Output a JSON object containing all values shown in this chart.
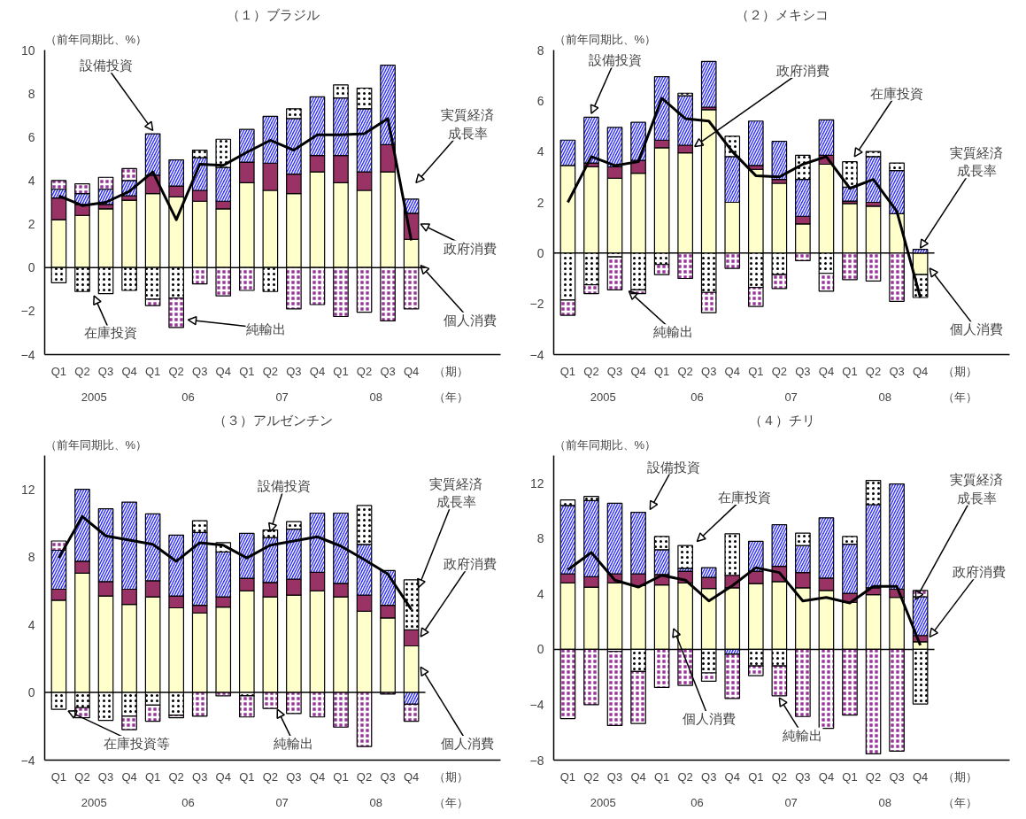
{
  "chart_data": [
    {
      "type": "bar",
      "stacked": true,
      "title": "（１）ブラジル",
      "ylabel": "（前年同期比、%）",
      "categories": [
        "Q1",
        "Q2",
        "Q3",
        "Q4",
        "Q1",
        "Q2",
        "Q3",
        "Q4",
        "Q1",
        "Q2",
        "Q3",
        "Q4",
        "Q1",
        "Q2",
        "Q3",
        "Q4"
      ],
      "annotations": [
        "2005",
        "06",
        "07",
        "08",
        "（期）",
        "（年）"
      ],
      "ylim": [
        -4,
        10
      ],
      "yticks": [
        -4,
        -2,
        0,
        2,
        4,
        6,
        8,
        10
      ],
      "series": [
        {
          "name": "個人消費",
          "color": "#ffffcc",
          "values": [
            2.2,
            2.4,
            2.7,
            3.1,
            3.4,
            3.25,
            3.05,
            2.7,
            3.9,
            3.55,
            3.4,
            4.4,
            3.9,
            3.55,
            4.4,
            1.3
          ]
        },
        {
          "name": "政府消費",
          "color": "#993366",
          "values": [
            1.0,
            0.5,
            0.2,
            0.2,
            0.85,
            0.5,
            0.5,
            0.35,
            0.95,
            1.25,
            0.9,
            0.75,
            1.25,
            0.85,
            1.25,
            1.2
          ]
        },
        {
          "name": "設備投資",
          "color": "#3333ff",
          "values": [
            0.4,
            0.5,
            0.7,
            0.7,
            1.9,
            1.2,
            1.5,
            1.55,
            1.5,
            2.15,
            2.55,
            2.7,
            2.65,
            2.9,
            3.65,
            0.65
          ]
        },
        {
          "name": "在庫投資",
          "color": "#ffffff",
          "values": [
            -0.7,
            -1.1,
            -1.2,
            -1.05,
            -1.45,
            -1.4,
            0.35,
            1.3,
            null,
            -1.1,
            0.45,
            null,
            0.6,
            0.95,
            null,
            null
          ]
        },
        {
          "name": "純輸出",
          "color": "#993399",
          "values": [
            0.4,
            0.45,
            0.55,
            0.55,
            -0.3,
            -1.35,
            -0.75,
            -1.3,
            -1.05,
            null,
            -1.9,
            -1.7,
            -2.25,
            -2.05,
            -2.45,
            -1.9
          ]
        },
        {
          "name": "実質経済成長率",
          "type": "line",
          "color": "#000000",
          "values": [
            3.3,
            2.85,
            3.0,
            3.5,
            4.4,
            2.2,
            4.75,
            4.7,
            5.3,
            5.85,
            5.4,
            6.1,
            6.1,
            6.15,
            6.85,
            1.25
          ]
        }
      ]
    },
    {
      "type": "bar",
      "stacked": true,
      "title": "（２）メキシコ",
      "ylabel": "（前年同期比、%）",
      "categories": [
        "Q1",
        "Q2",
        "Q3",
        "Q4",
        "Q1",
        "Q2",
        "Q3",
        "Q4",
        "Q1",
        "Q2",
        "Q3",
        "Q4",
        "Q1",
        "Q2",
        "Q3",
        "Q4"
      ],
      "annotations": [
        "2005",
        "06",
        "07",
        "08",
        "（期）",
        "（年）"
      ],
      "ylim": [
        -4,
        8
      ],
      "yticks": [
        -4,
        -2,
        0,
        2,
        4,
        6,
        8
      ],
      "series": [
        {
          "name": "個人消費",
          "color": "#ffffcc",
          "values": [
            3.45,
            3.4,
            2.95,
            3.15,
            4.15,
            3.95,
            5.65,
            2.0,
            3.3,
            2.75,
            1.15,
            3.5,
            1.95,
            1.85,
            1.55,
            -0.85
          ]
        },
        {
          "name": "政府消費",
          "color": "#993366",
          "values": [
            null,
            0.15,
            0.45,
            0.5,
            0.3,
            0.3,
            0.1,
            null,
            0.15,
            0.15,
            0.3,
            0.35,
            0.1,
            0.15,
            null,
            null
          ]
        },
        {
          "name": "設備投資",
          "color": "#3333ff",
          "values": [
            1.0,
            1.8,
            1.55,
            1.5,
            2.5,
            1.95,
            1.8,
            1.8,
            1.75,
            1.5,
            1.45,
            1.4,
            0.55,
            1.8,
            1.7,
            0.15
          ]
        },
        {
          "name": "在庫投資",
          "color": "#ffffff",
          "values": [
            -1.85,
            -1.25,
            -0.15,
            -1.45,
            -0.45,
            0.1,
            -1.55,
            0.8,
            -1.35,
            -0.85,
            0.95,
            -0.8,
            1.0,
            0.2,
            0.3,
            -0.9
          ]
        },
        {
          "name": "純輸出",
          "color": "#993399",
          "values": [
            -0.6,
            -0.35,
            -1.3,
            -0.15,
            -0.4,
            -1.0,
            -0.8,
            -0.6,
            -0.75,
            -0.55,
            -0.3,
            -0.7,
            -1.05,
            -1.1,
            -1.9,
            null
          ]
        },
        {
          "name": "実質経済成長率",
          "type": "line",
          "color": "#000000",
          "values": [
            2.0,
            3.8,
            3.45,
            3.6,
            6.1,
            5.3,
            5.2,
            4.0,
            3.05,
            3.0,
            3.5,
            3.8,
            2.55,
            2.9,
            1.65,
            -1.75
          ]
        }
      ]
    },
    {
      "type": "bar",
      "stacked": true,
      "title": "（３）アルゼンチン",
      "ylabel": "（前年同期比、%）",
      "categories": [
        "Q1",
        "Q2",
        "Q3",
        "Q4",
        "Q1",
        "Q2",
        "Q3",
        "Q4",
        "Q1",
        "Q2",
        "Q3",
        "Q4",
        "Q1",
        "Q2",
        "Q3",
        "Q4"
      ],
      "annotations": [
        "2005",
        "06",
        "07",
        "08",
        "（期）",
        "（年）"
      ],
      "ylim": [
        -4,
        14
      ],
      "yticks": [
        -4,
        0,
        4,
        8,
        12
      ],
      "series": [
        {
          "name": "個人消費",
          "color": "#ffffcc",
          "values": [
            5.45,
            7.05,
            5.7,
            5.2,
            5.65,
            5.0,
            4.7,
            5.05,
            6.0,
            5.65,
            5.75,
            6.0,
            5.65,
            4.8,
            4.4,
            2.75
          ]
        },
        {
          "name": "政府消費",
          "color": "#993366",
          "values": [
            0.65,
            0.7,
            0.85,
            0.9,
            0.95,
            0.7,
            0.45,
            0.6,
            0.75,
            0.85,
            0.95,
            1.1,
            0.8,
            0.95,
            0.75,
            0.95
          ]
        },
        {
          "name": "設備投資",
          "color": "#3333ff",
          "values": [
            2.3,
            4.25,
            4.3,
            5.15,
            3.95,
            3.6,
            4.3,
            2.65,
            2.65,
            2.65,
            2.95,
            3.5,
            4.15,
            3.0,
            2.05,
            -0.7
          ]
        },
        {
          "name": "在庫投資等",
          "color": "#ffffff",
          "values": [
            -1.0,
            -0.9,
            -1.65,
            -1.4,
            -0.75,
            -1.35,
            0.7,
            0.55,
            -0.2,
            0.45,
            0.45,
            null,
            null,
            2.3,
            null,
            2.95
          ]
        },
        {
          "name": "純輸出",
          "color": "#993399",
          "values": [
            0.55,
            -0.6,
            null,
            -0.8,
            -0.95,
            -0.15,
            -1.4,
            -0.2,
            -1.25,
            -0.95,
            -1.25,
            -1.45,
            -2.05,
            -3.2,
            -0.1,
            -1.0
          ]
        },
        {
          "name": "実質経済成長率",
          "type": "line",
          "color": "#000000",
          "values": [
            7.95,
            10.4,
            9.25,
            9.0,
            8.75,
            7.75,
            8.85,
            8.7,
            7.95,
            8.7,
            8.95,
            9.2,
            8.65,
            7.85,
            7.0,
            4.9
          ]
        }
      ]
    },
    {
      "type": "bar",
      "stacked": true,
      "title": "（４）チリ",
      "ylabel": "（前年同期比、%）",
      "categories": [
        "Q1",
        "Q2",
        "Q3",
        "Q4",
        "Q1",
        "Q2",
        "Q3",
        "Q4",
        "Q1",
        "Q2",
        "Q3",
        "Q4",
        "Q1",
        "Q2",
        "Q3",
        "Q4"
      ],
      "annotations": [
        "2005",
        "06",
        "07",
        "08",
        "（期）",
        "（年）"
      ],
      "ylim": [
        -8,
        14
      ],
      "yticks": [
        -8,
        -4,
        0,
        4,
        8,
        12
      ],
      "series": [
        {
          "name": "個人消費",
          "color": "#ffffcc",
          "values": [
            4.8,
            4.5,
            4.8,
            4.6,
            4.65,
            4.8,
            4.4,
            4.45,
            4.75,
            4.9,
            4.45,
            4.25,
            3.4,
            3.95,
            3.75,
            0.55
          ]
        },
        {
          "name": "政府消費",
          "color": "#993366",
          "values": [
            0.65,
            0.75,
            0.65,
            0.85,
            0.75,
            0.85,
            0.8,
            0.9,
            0.9,
            1.1,
            1.1,
            0.9,
            0.65,
            0.5,
            0.6,
            0.45
          ]
        },
        {
          "name": "設備投資",
          "color": "#3333ff",
          "values": [
            4.95,
            5.5,
            5.1,
            4.45,
            1.8,
            0.2,
            0.7,
            -0.35,
            2.15,
            3.0,
            1.95,
            4.35,
            3.55,
            6.0,
            7.6,
            2.8
          ]
        },
        {
          "name": "在庫投資",
          "color": "#ffffff",
          "values": [
            0.4,
            0.3,
            -0.15,
            -1.6,
            0.95,
            1.65,
            -1.7,
            3.0,
            -1.2,
            -1.2,
            0.9,
            null,
            0.55,
            1.75,
            null,
            -3.95
          ]
        },
        {
          "name": "純輸出",
          "color": "#993399",
          "values": [
            -5.0,
            -4.0,
            -5.35,
            -3.75,
            -2.75,
            -2.6,
            -0.6,
            -3.2,
            -0.7,
            -2.15,
            -4.85,
            -5.7,
            -4.75,
            -7.55,
            -7.35,
            0.45
          ]
        },
        {
          "name": "実質経済成長率",
          "type": "line",
          "color": "#000000",
          "values": [
            5.75,
            7.0,
            5.0,
            4.5,
            5.35,
            5.0,
            3.5,
            4.6,
            5.9,
            5.55,
            3.5,
            3.75,
            3.35,
            4.55,
            4.55,
            0.3
          ]
        }
      ]
    }
  ]
}
